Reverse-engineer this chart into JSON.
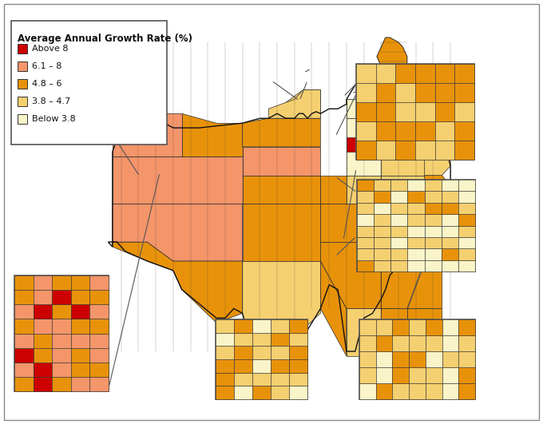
{
  "title": "Average Annual Growth Rate (%)",
  "legend_labels": [
    "Above 8",
    "6.1 – 8",
    "4.8 – 6",
    "3.8 – 4.7",
    "Below 3.8"
  ],
  "legend_colors": [
    "#cc0000",
    "#f4956a",
    "#e8920a",
    "#f5d070",
    "#faf5c8"
  ],
  "background_color": "#ffffff",
  "border_color": "#333333",
  "line_color": "#333333",
  "fig_background": "#ffffff",
  "outer_border_color": "#aaaaaa",
  "inset_line_color": "#555555",
  "inset_bg": "#ffffff"
}
